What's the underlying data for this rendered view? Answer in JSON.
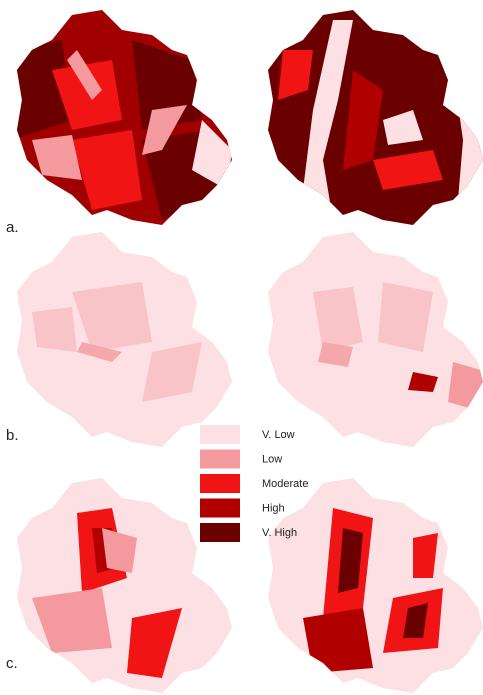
{
  "panels": [
    {
      "label": "a."
    },
    {
      "label": "b."
    },
    {
      "label": "c."
    }
  ],
  "legend": [
    {
      "label": "V. Low",
      "color": "#fde0e3"
    },
    {
      "label": "Low",
      "color": "#f4999d"
    },
    {
      "label": "Moderate",
      "color": "#f01414"
    },
    {
      "label": "High",
      "color": "#b00000"
    },
    {
      "label": "V. High",
      "color": "#6a0000"
    }
  ]
}
